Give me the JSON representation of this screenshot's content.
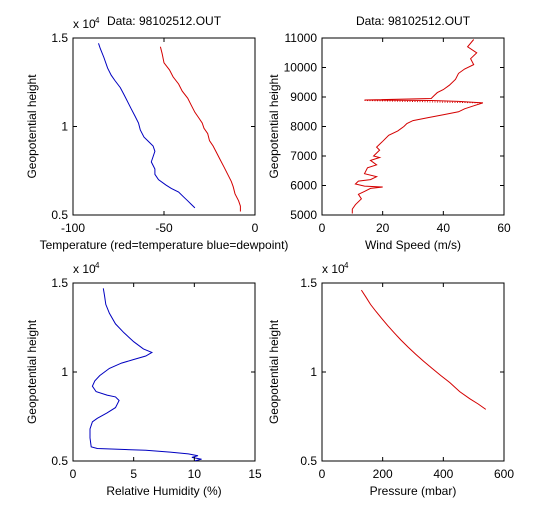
{
  "chart_data": [
    {
      "type": "line",
      "title": "Data: 98102512.OUT",
      "xlabel": "Temperature (red=temperature blue=dewpoint)",
      "ylabel": "Geopotential height",
      "y_exponent_base": "x 10",
      "y_exponent_power": "4",
      "xlim": [
        -100,
        0
      ],
      "ylim": [
        0.5,
        1.5
      ],
      "xticks": [
        "-100",
        "-50",
        "0"
      ],
      "xtick_values": [
        -100,
        -50,
        0
      ],
      "yticks": [
        "0.5",
        "1",
        "1.5"
      ],
      "ytick_values": [
        0.5,
        1.0,
        1.5
      ],
      "series": [
        {
          "name": "temperature",
          "color": "#d40000",
          "style": "solid",
          "points": [
            [
              -52,
              1.45
            ],
            [
              -51,
              1.41
            ],
            [
              -50,
              1.36
            ],
            [
              -47,
              1.32
            ],
            [
              -45,
              1.28
            ],
            [
              -42,
              1.24
            ],
            [
              -40,
              1.2
            ],
            [
              -37,
              1.16
            ],
            [
              -35,
              1.12
            ],
            [
              -33,
              1.08
            ],
            [
              -31,
              1.05
            ],
            [
              -29,
              1.02
            ],
            [
              -28,
              0.99
            ],
            [
              -26,
              0.96
            ],
            [
              -25,
              0.92
            ],
            [
              -23,
              0.89
            ],
            [
              -21,
              0.85
            ],
            [
              -19,
              0.81
            ],
            [
              -17,
              0.77
            ],
            [
              -15,
              0.73
            ],
            [
              -13,
              0.69
            ],
            [
              -12,
              0.66
            ],
            [
              -11,
              0.62
            ],
            [
              -9,
              0.58
            ],
            [
              -8,
              0.55
            ],
            [
              -8,
              0.52
            ]
          ]
        },
        {
          "name": "dewpoint",
          "color": "#0000c0",
          "style": "solid",
          "points": [
            [
              -86,
              1.47
            ],
            [
              -85,
              1.44
            ],
            [
              -83,
              1.39
            ],
            [
              -81,
              1.33
            ],
            [
              -79,
              1.29
            ],
            [
              -77,
              1.26
            ],
            [
              -74,
              1.22
            ],
            [
              -72,
              1.18
            ],
            [
              -70,
              1.14
            ],
            [
              -68,
              1.1
            ],
            [
              -66,
              1.06
            ],
            [
              -64,
              1.02
            ],
            [
              -63,
              0.98
            ],
            [
              -61,
              0.94
            ],
            [
              -58,
              0.91
            ],
            [
              -56,
              0.89
            ],
            [
              -55,
              0.86
            ],
            [
              -56,
              0.83
            ],
            [
              -57,
              0.8
            ],
            [
              -55,
              0.76
            ],
            [
              -55,
              0.73
            ],
            [
              -53,
              0.7
            ],
            [
              -49,
              0.67
            ],
            [
              -46,
              0.65
            ],
            [
              -42,
              0.63
            ],
            [
              -39,
              0.6
            ],
            [
              -37,
              0.58
            ],
            [
              -35,
              0.56
            ],
            [
              -33,
              0.54
            ]
          ]
        }
      ]
    },
    {
      "type": "line",
      "title": "Data: 98102512.OUT",
      "xlabel": "Wind Speed (m/s)",
      "ylabel": "Geopotential height",
      "xlim": [
        0,
        60
      ],
      "ylim": [
        5000,
        11000
      ],
      "xticks": [
        "0",
        "20",
        "40",
        "60"
      ],
      "xtick_values": [
        0,
        20,
        40,
        60
      ],
      "yticks": [
        "5000",
        "6000",
        "7000",
        "8000",
        "9000",
        "10000",
        "11000"
      ],
      "ytick_values": [
        5000,
        6000,
        7000,
        8000,
        9000,
        10000,
        11000
      ],
      "series": [
        {
          "name": "wind speed",
          "color": "#d40000",
          "style": "solid",
          "points": [
            [
              50,
              10950
            ],
            [
              48,
              10700
            ],
            [
              51,
              10500
            ],
            [
              49,
              10300
            ],
            [
              50,
              10100
            ],
            [
              47,
              9950
            ],
            [
              45,
              9800
            ],
            [
              44,
              9600
            ],
            [
              42,
              9400
            ],
            [
              40,
              9250
            ],
            [
              38,
              9150
            ],
            [
              37,
              9050
            ],
            [
              36,
              8950
            ],
            [
              14,
              8900
            ],
            [
              36,
              8880
            ],
            [
              45,
              8850
            ],
            [
              53,
              8800
            ],
            [
              50,
              8700
            ],
            [
              47,
              8600
            ],
            [
              45,
              8500
            ],
            [
              40,
              8400
            ],
            [
              35,
              8300
            ],
            [
              30,
              8200
            ],
            [
              28,
              8100
            ],
            [
              27,
              8000
            ],
            [
              25,
              7850
            ],
            [
              22,
              7700
            ],
            [
              20,
              7500
            ],
            [
              18,
              7300
            ],
            [
              19,
              7200
            ],
            [
              17,
              7000
            ],
            [
              19,
              6950
            ],
            [
              16,
              6850
            ],
            [
              18,
              6700
            ],
            [
              15,
              6600
            ],
            [
              14,
              6400
            ],
            [
              18,
              6300
            ],
            [
              16,
              6200
            ],
            [
              12,
              6150
            ],
            [
              11,
              6050
            ],
            [
              14,
              5980
            ],
            [
              20,
              5950
            ],
            [
              16,
              5900
            ],
            [
              14,
              5800
            ],
            [
              12,
              5700
            ],
            [
              13,
              5550
            ],
            [
              11,
              5350
            ],
            [
              10,
              5200
            ],
            [
              10,
              5050
            ]
          ]
        },
        {
          "name": "wind speed dotted",
          "color": "#d40000",
          "style": "dotted",
          "points": [
            [
              14,
              8880
            ],
            [
              53,
              8800
            ]
          ]
        }
      ]
    },
    {
      "type": "line",
      "title": "",
      "xlabel": "Relative Humidity (%)",
      "ylabel": "Geopotential height",
      "y_exponent_base": "x 10",
      "y_exponent_power": "4",
      "xlim": [
        0,
        15
      ],
      "ylim": [
        0.5,
        1.5
      ],
      "xticks": [
        "0",
        "5",
        "10",
        "15"
      ],
      "xtick_values": [
        0,
        5,
        10,
        15
      ],
      "yticks": [
        "0.5",
        "1",
        "1.5"
      ],
      "ytick_values": [
        0.5,
        1.0,
        1.5
      ],
      "series": [
        {
          "name": "relative humidity",
          "color": "#0000c0",
          "style": "solid",
          "points": [
            [
              2.5,
              1.47
            ],
            [
              2.6,
              1.43
            ],
            [
              2.7,
              1.38
            ],
            [
              3.0,
              1.33
            ],
            [
              3.5,
              1.27
            ],
            [
              4.2,
              1.22
            ],
            [
              5.0,
              1.17
            ],
            [
              5.8,
              1.13
            ],
            [
              6.5,
              1.11
            ],
            [
              6.0,
              1.09
            ],
            [
              5.0,
              1.07
            ],
            [
              4.0,
              1.05
            ],
            [
              3.0,
              1.02
            ],
            [
              2.2,
              0.98
            ],
            [
              1.8,
              0.95
            ],
            [
              1.6,
              0.92
            ],
            [
              1.9,
              0.89
            ],
            [
              2.8,
              0.87
            ],
            [
              3.5,
              0.86
            ],
            [
              3.8,
              0.84
            ],
            [
              3.5,
              0.8
            ],
            [
              2.8,
              0.77
            ],
            [
              2.0,
              0.74
            ],
            [
              1.6,
              0.72
            ],
            [
              1.4,
              0.68
            ],
            [
              1.4,
              0.63
            ],
            [
              1.5,
              0.58
            ],
            [
              2.0,
              0.57
            ],
            [
              4.0,
              0.565
            ],
            [
              6.0,
              0.56
            ],
            [
              8.0,
              0.55
            ],
            [
              9.5,
              0.54
            ],
            [
              10.3,
              0.53
            ],
            [
              9.8,
              0.52
            ],
            [
              10.6,
              0.51
            ],
            [
              10.0,
              0.5
            ]
          ]
        }
      ]
    },
    {
      "type": "line",
      "title": "",
      "xlabel": "Pressure (mbar)",
      "ylabel": "Geopotential height",
      "y_exponent_base": "x 10",
      "y_exponent_power": "4",
      "xlim": [
        0,
        600
      ],
      "ylim": [
        0.5,
        1.5
      ],
      "xticks": [
        "0",
        "200",
        "400",
        "600"
      ],
      "xtick_values": [
        0,
        200,
        400,
        600
      ],
      "yticks": [
        "0.5",
        "1",
        "1.5"
      ],
      "ytick_values": [
        0.5,
        1.0,
        1.5
      ],
      "series": [
        {
          "name": "pressure",
          "color": "#d40000",
          "style": "solid",
          "points": [
            [
              130,
              1.46
            ],
            [
              145,
              1.42
            ],
            [
              160,
              1.38
            ],
            [
              178,
              1.34
            ],
            [
              197,
              1.3
            ],
            [
              217,
              1.26
            ],
            [
              238,
              1.22
            ],
            [
              260,
              1.18
            ],
            [
              284,
              1.14
            ],
            [
              309,
              1.1
            ],
            [
              335,
              1.06
            ],
            [
              363,
              1.02
            ],
            [
              392,
              0.98
            ],
            [
              422,
              0.94
            ],
            [
              454,
              0.89
            ],
            [
              487,
              0.85
            ],
            [
              515,
              0.82
            ],
            [
              540,
              0.79
            ]
          ]
        }
      ]
    }
  ]
}
